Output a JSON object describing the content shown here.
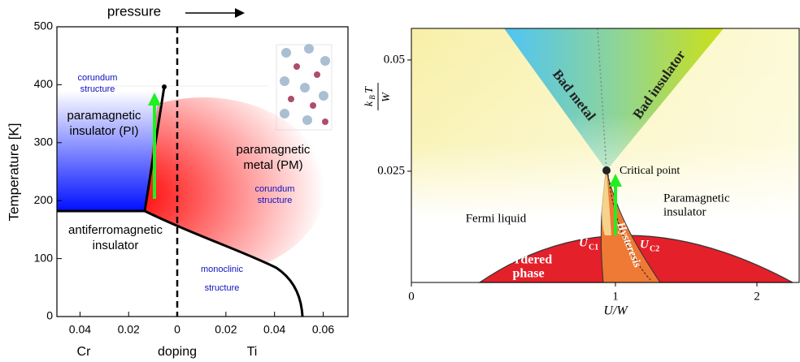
{
  "left_panel": {
    "title": "pressure",
    "ylabel": "Temperature  [K]",
    "xlabels": [
      "Cr",
      "doping",
      "Ti"
    ],
    "xlim": [
      -0.0495,
      0.0702
    ],
    "ylim": [
      0,
      500
    ],
    "xticks": [
      {
        "value": -0.04,
        "label": "0.04"
      },
      {
        "value": -0.02,
        "label": "0.02"
      },
      0,
      0.02,
      0.04,
      0.06
    ],
    "yticks": [
      0,
      100,
      200,
      300,
      400,
      500
    ],
    "annotations": {
      "corundum_top": [
        "corundum",
        "structure"
      ],
      "pi": [
        "paramagnetic",
        "insulator (PI)"
      ],
      "pm": [
        "paramagnetic",
        "metal (PM)"
      ],
      "corundum_right": [
        "corundum",
        "structure"
      ],
      "afi": [
        "antiferromagnetic",
        "insulator"
      ],
      "monoclinic": [
        "monoclinic",
        "structure"
      ]
    }
  },
  "right_panel": {
    "xlabel": "U/W",
    "ylabel": {
      "k": "k",
      "sub": "B",
      "t": "T",
      "den": "W"
    },
    "ylim": [
      0,
      0.0571
    ],
    "xticks": [
      0,
      1,
      2
    ],
    "yticks": [
      0.025,
      0.05
    ],
    "annotations": {
      "bad_metal": "Bad metal",
      "bad_insulator": "Bad insulator",
      "critical_point": "Critical point",
      "fermi_liquid": "Fermi liquid",
      "paramagnetic_insulator": [
        "Paramagnetic",
        "insulator"
      ],
      "hysteresis": "Hysteresis",
      "uc1": {
        "u": "U",
        "sub": "C1"
      },
      "uc2": {
        "u": "U",
        "sub": "C2"
      },
      "ordered_phase": [
        "Ordered",
        "phase"
      ]
    }
  }
}
